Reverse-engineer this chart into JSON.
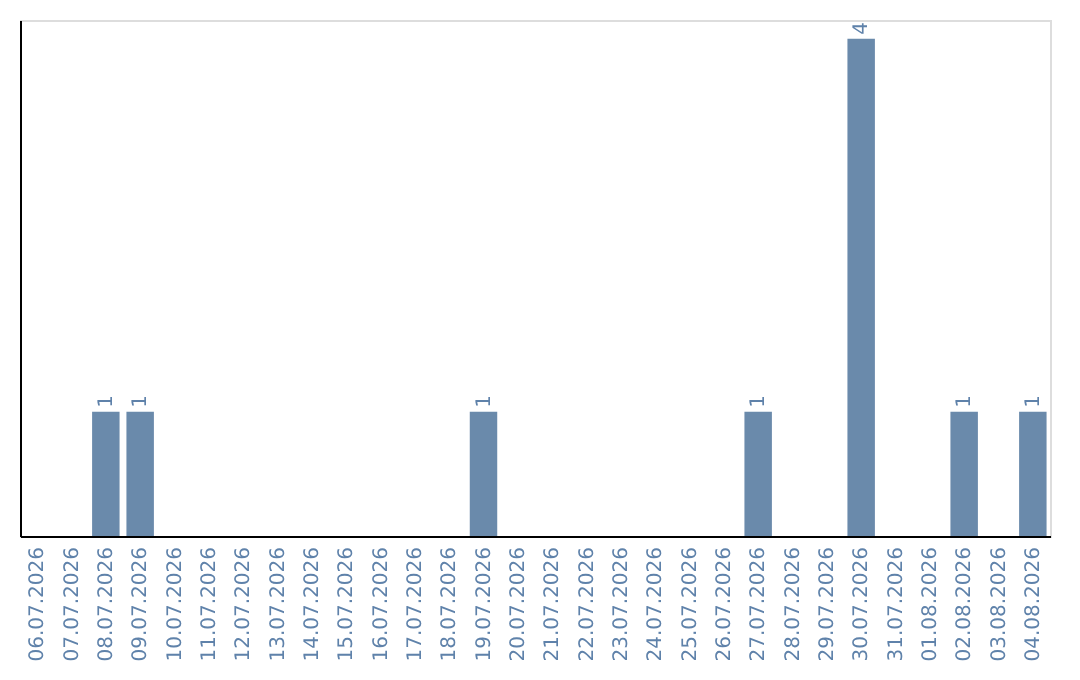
{
  "chart_data": {
    "type": "bar",
    "categories": [
      "06.07.2026",
      "07.07.2026",
      "08.07.2026",
      "09.07.2026",
      "10.07.2026",
      "11.07.2026",
      "12.07.2026",
      "13.07.2026",
      "14.07.2026",
      "15.07.2026",
      "16.07.2026",
      "17.07.2026",
      "18.07.2026",
      "19.07.2026",
      "20.07.2026",
      "21.07.2026",
      "22.07.2026",
      "23.07.2026",
      "24.07.2026",
      "25.07.2026",
      "26.07.2026",
      "27.07.2026",
      "28.07.2026",
      "29.07.2026",
      "30.07.2026",
      "31.07.2026",
      "01.08.2026",
      "02.08.2026",
      "03.08.2026",
      "04.08.2026"
    ],
    "values": [
      0,
      0,
      1,
      1,
      0,
      0,
      0,
      0,
      0,
      0,
      0,
      0,
      0,
      1,
      0,
      0,
      0,
      0,
      0,
      0,
      0,
      1,
      0,
      0,
      4,
      0,
      0,
      1,
      0,
      1
    ],
    "value_labels": [
      null,
      null,
      "1",
      "1",
      null,
      null,
      null,
      null,
      null,
      null,
      null,
      null,
      null,
      "1",
      null,
      null,
      null,
      null,
      null,
      null,
      null,
      "1",
      null,
      null,
      "4",
      null,
      null,
      "1",
      null,
      "1"
    ],
    "color": "#6a8aab",
    "ylim": [
      0,
      4.15
    ],
    "tick_labels": "x",
    "grid": false
  }
}
